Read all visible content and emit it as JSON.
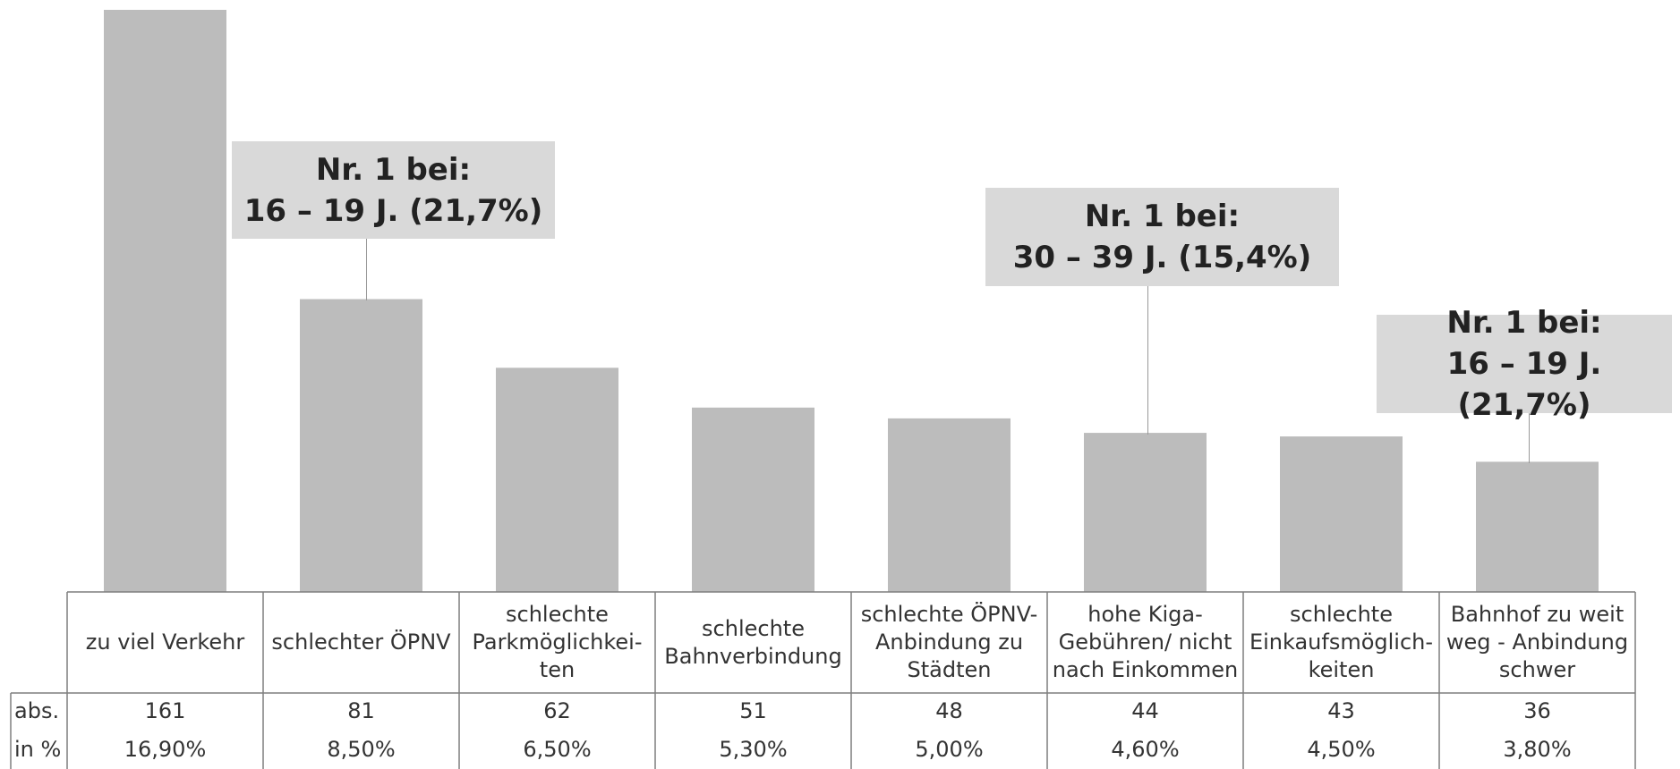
{
  "chart_data": {
    "type": "bar",
    "categories": [
      "zu viel Verkehr",
      "schlechter ÖPNV",
      "schlechte Parkmöglichkei-ten",
      "schlechte Bahnverbindung",
      "schlechte ÖPNV-Anbindung zu Städten",
      "hohe Kiga-Gebühren/ nicht nach Einkommen",
      "schlechte Einkaufsmöglich-keiten",
      "Bahnhof zu weit weg - Anbindung schwer"
    ],
    "category_lines": [
      [
        "zu viel Verkehr"
      ],
      [
        "schlechter ÖPNV"
      ],
      [
        "schlechte",
        "Parkmöglichkei-",
        "ten"
      ],
      [
        "schlechte",
        "Bahnverbindung"
      ],
      [
        "schlechte ÖPNV-",
        "Anbindung zu",
        "Städten"
      ],
      [
        "hohe Kiga-",
        "Gebühren/ nicht",
        "nach Einkommen"
      ],
      [
        "schlechte",
        "Einkaufsmöglich-",
        "keiten"
      ],
      [
        "Bahnhof zu weit",
        "weg - Anbindung",
        "schwer"
      ]
    ],
    "values": [
      161,
      81,
      62,
      51,
      48,
      44,
      43,
      36
    ],
    "percent_labels": [
      "16,90%",
      "8,50%",
      "6,50%",
      "5,30%",
      "5,00%",
      "4,60%",
      "4,50%",
      "3,80%"
    ],
    "row_labels": {
      "abs": "abs.",
      "pct": "in %"
    },
    "bar_color": "#bcbcbc",
    "callout_color": "#d9d9d9",
    "grid": false,
    "annotations": [
      {
        "category_index": 1,
        "line1": "Nr. 1 bei:",
        "line2": "16 – 19 J. (21,7%)"
      },
      {
        "category_index": 5,
        "line1": "Nr. 1 bei:",
        "line2": "30 – 39 J. (15,4%)"
      },
      {
        "category_index": 7,
        "line1": "Nr. 1 bei:",
        "line2": "16 – 19 J. (21,7%)"
      }
    ]
  }
}
